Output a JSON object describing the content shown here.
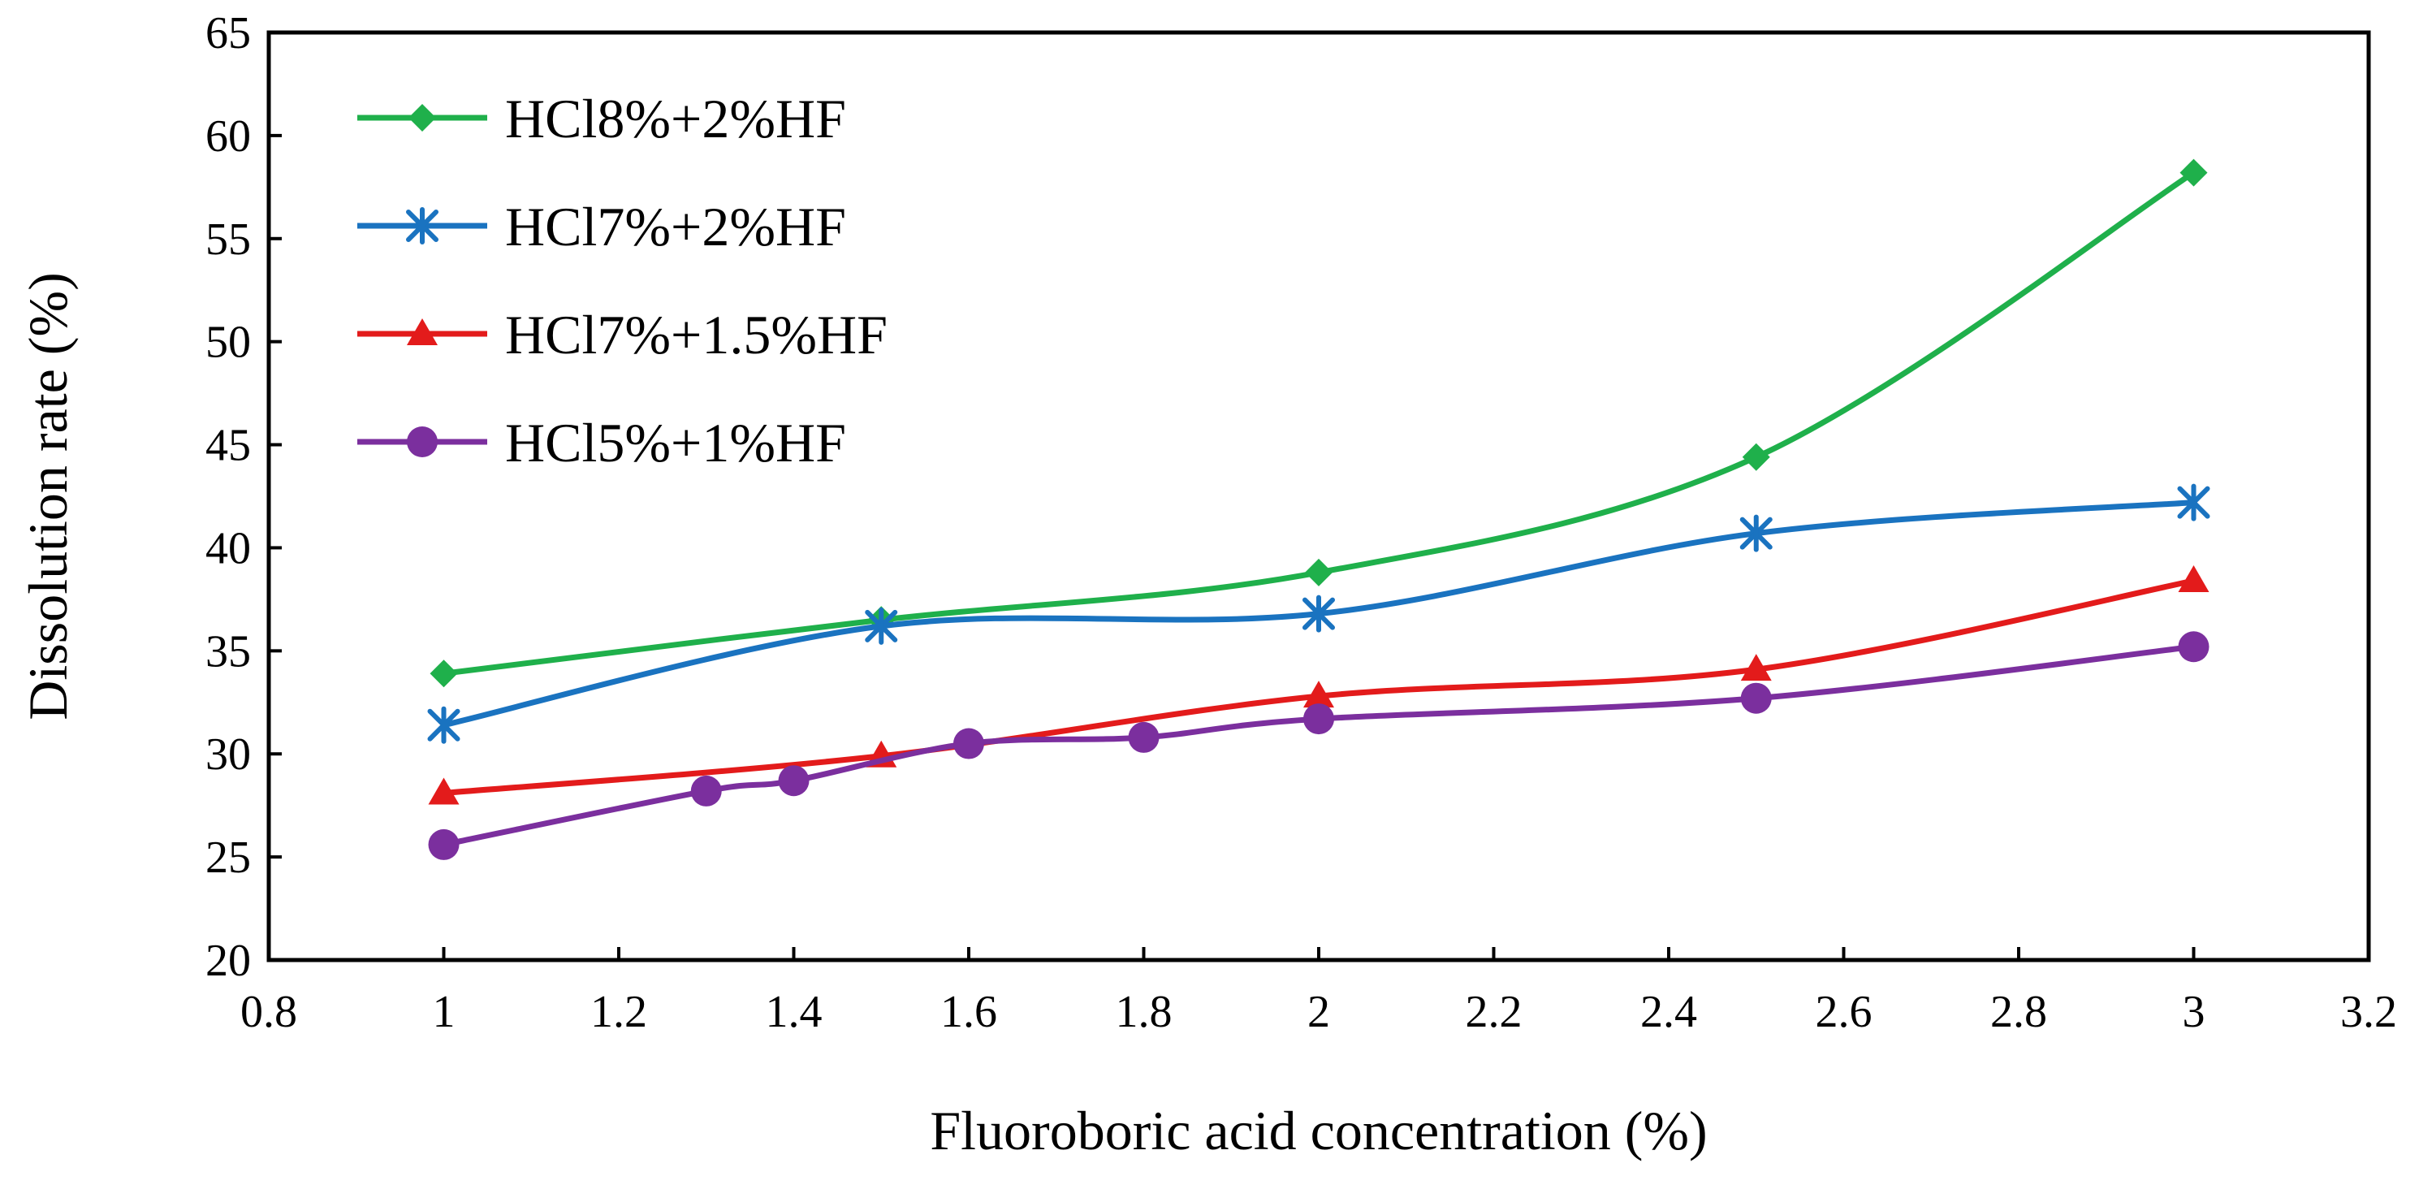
{
  "chart_data": {
    "type": "line",
    "title": "",
    "xlabel": "Fluoroboric acid concentration (%)",
    "ylabel": "Dissolution rate (%)",
    "xlim": [
      0.8,
      3.2
    ],
    "ylim": [
      20,
      65
    ],
    "xticks": [
      0.8,
      1,
      1.2,
      1.4,
      1.6,
      1.8,
      2,
      2.2,
      2.4,
      2.6,
      2.8,
      3,
      3.2
    ],
    "xtick_labels": [
      "0.8",
      "1",
      "1.2",
      "1.4",
      "1.6",
      "1.8",
      "2",
      "2.2",
      "2.4",
      "2.6",
      "2.8",
      "3",
      "3.2"
    ],
    "yticks": [
      20,
      25,
      30,
      35,
      40,
      45,
      50,
      55,
      60,
      65
    ],
    "ytick_labels": [
      "20",
      "25",
      "30",
      "35",
      "40",
      "45",
      "50",
      "55",
      "60",
      "65"
    ],
    "grid": false,
    "legend_position": "top-left",
    "smooth": true,
    "series": [
      {
        "name": "HCl8%+2%HF",
        "color": "#1fb04b",
        "marker": "diamond",
        "x": [
          1,
          1.5,
          2,
          2.5,
          3
        ],
        "y": [
          33.9,
          36.5,
          38.8,
          44.4,
          58.2
        ]
      },
      {
        "name": "HCl7%+2%HF",
        "color": "#1a73c0",
        "marker": "asterisk",
        "x": [
          1,
          1.5,
          2,
          2.5,
          3
        ],
        "y": [
          31.4,
          36.2,
          36.8,
          40.7,
          42.2
        ]
      },
      {
        "name": "HCl7%+1.5%HF",
        "color": "#e31b1b",
        "marker": "triangle",
        "x": [
          1,
          1.5,
          2,
          2.5,
          3
        ],
        "y": [
          28.1,
          29.9,
          32.8,
          34.1,
          38.4
        ]
      },
      {
        "name": "HCl5%+1%HF",
        "color": "#7b2f9e",
        "marker": "circle",
        "x": [
          1,
          1.3,
          1.4,
          1.6,
          1.8,
          2,
          2.5,
          3
        ],
        "y": [
          25.6,
          28.2,
          28.7,
          30.5,
          30.8,
          31.7,
          32.7,
          35.2
        ]
      }
    ]
  }
}
